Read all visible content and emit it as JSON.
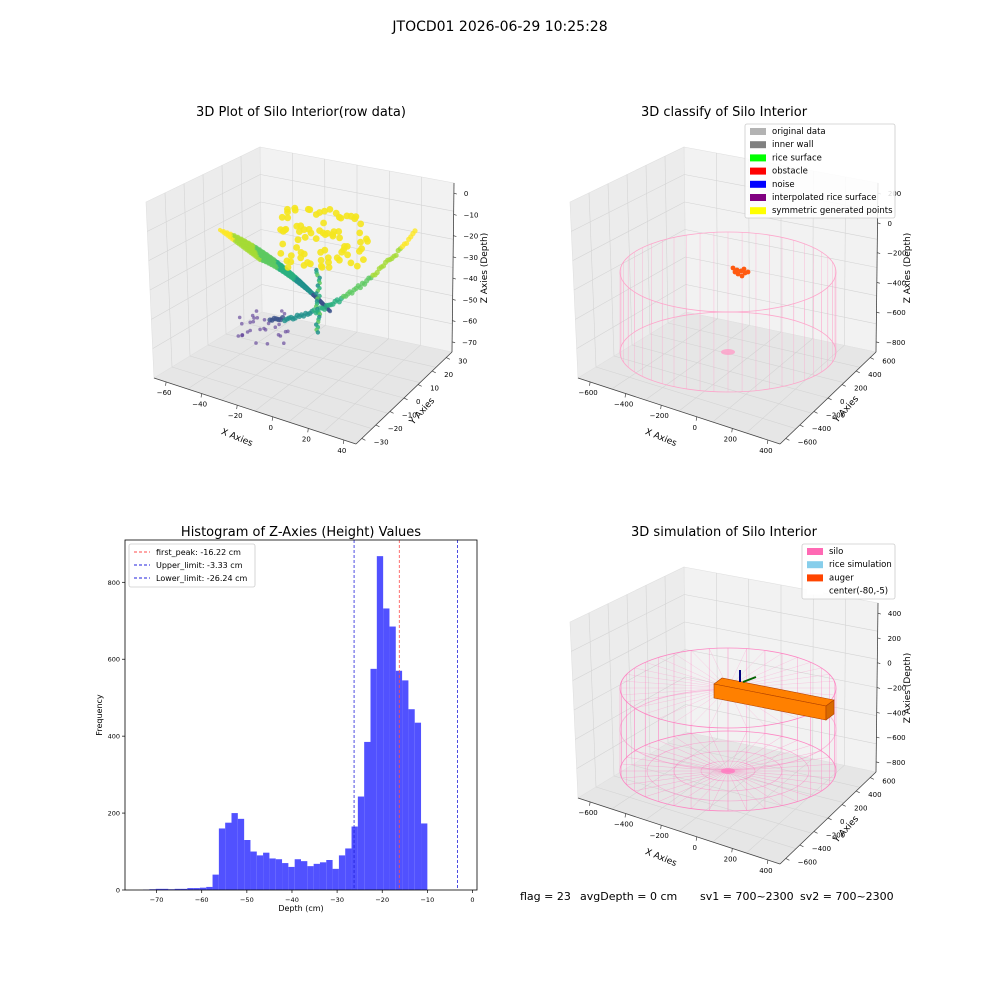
{
  "suptitle": "JTOCD01 2026-06-29 10:25:28",
  "status": {
    "flag": "flag = 23",
    "avg_depth": "avgDepth = 0 cm",
    "sv1": "sv1 = 700~2300",
    "sv2": "sv2 = 700~2300"
  },
  "chart_data": [
    {
      "type": "scatter",
      "title": "3D Plot of Silo Interior(row data)",
      "xlabel": "X Axies",
      "ylabel": "Y Axies",
      "zlabel": "Z Axies (Depth)",
      "x_ticks": [
        "−60",
        "−40",
        "−20",
        "0",
        "20",
        "40"
      ],
      "y_ticks": [
        "−30",
        "−20",
        "−10",
        "0",
        "10",
        "20",
        "30"
      ],
      "z_ticks": [
        "0",
        "−10",
        "−20",
        "−30",
        "−40",
        "−50",
        "−60",
        "−70"
      ],
      "xlim": [
        -70,
        50
      ],
      "ylim": [
        -35,
        35
      ],
      "zlim": [
        -78,
        2
      ],
      "colormap": "viridis",
      "grid": true
    },
    {
      "type": "scatter",
      "title": "3D classify of Silo Interior",
      "xlabel": "X Axies",
      "ylabel": "Y Axies",
      "zlabel": "Z Axies (Depth)",
      "x_ticks": [
        "−600",
        "−400",
        "−200",
        "0",
        "200",
        "400"
      ],
      "y_ticks": [
        "−600",
        "−400",
        "−200",
        "0",
        "200",
        "400",
        "600"
      ],
      "z_ticks": [
        "200",
        "0",
        "−200",
        "−400",
        "−600",
        "−800"
      ],
      "legend_position": "top-right",
      "legend": [
        {
          "label": "original data",
          "color": "#b3b3b3"
        },
        {
          "label": "inner wall",
          "color": "#808080"
        },
        {
          "label": "rice surface",
          "color": "#00ff00"
        },
        {
          "label": "obstacle",
          "color": "#ff0000"
        },
        {
          "label": "noise",
          "color": "#0000ff"
        },
        {
          "label": "interpolated rice surface",
          "color": "#800080"
        },
        {
          "label": "symmetric generated points",
          "color": "#ffff00"
        }
      ],
      "wire_color": "#ff9ec8",
      "grid": true
    },
    {
      "type": "bar",
      "title": "Histogram of Z-Axies (Height) Values",
      "xlabel": "Depth (cm)",
      "ylabel": "Frequency",
      "xlim": [
        -77,
        1
      ],
      "ylim": [
        0,
        910
      ],
      "x_ticks": [
        -70,
        -60,
        -50,
        -40,
        -30,
        -20,
        -10,
        0
      ],
      "y_ticks": [
        0,
        200,
        400,
        600,
        800
      ],
      "bin_start": -73,
      "bin_width": 1.4,
      "values": [
        1,
        2,
        3,
        3,
        2,
        3,
        3,
        5,
        5,
        6,
        8,
        40,
        160,
        175,
        200,
        185,
        130,
        100,
        90,
        97,
        82,
        80,
        70,
        60,
        80,
        75,
        62,
        68,
        72,
        78,
        55,
        90,
        108,
        165,
        243,
        385,
        575,
        868,
        732,
        685,
        570,
        545,
        470,
        435,
        173
      ],
      "bar_color": "#5151ff",
      "lines": [
        {
          "label": "first_peak: -16.22 cm",
          "x": -16.22,
          "color": "#ff4b4b"
        },
        {
          "label": "Upper_limit: -3.33 cm",
          "x": -3.33,
          "color": "#2020dd"
        },
        {
          "label": "Lower_limit: -26.24 cm",
          "x": -26.24,
          "color": "#2020dd"
        }
      ],
      "legend_position": "top-left",
      "grid": false
    },
    {
      "type": "scatter",
      "title": "3D simulation of Silo Interior",
      "xlabel": "X Axies",
      "ylabel": "Y Axies",
      "zlabel": "Z Axies (Depth)",
      "x_ticks": [
        "−600",
        "−400",
        "−200",
        "0",
        "200",
        "400"
      ],
      "y_ticks": [
        "−600",
        "−400",
        "−200",
        "0",
        "200",
        "400",
        "600"
      ],
      "z_ticks": [
        "400",
        "200",
        "0",
        "−200",
        "−400",
        "−600",
        "−800"
      ],
      "legend_position": "top-right",
      "legend": [
        {
          "label": "silo",
          "color": "#ff69b4"
        },
        {
          "label": "rice simulation",
          "color": "#87ceeb"
        },
        {
          "label": "auger",
          "color": "#ff4500"
        },
        {
          "label": "center(-80,-5)",
          "color": "#ffffff"
        }
      ],
      "wire_color": "#ff7cc0",
      "auger_color": "#ff8000",
      "grid": true
    }
  ]
}
